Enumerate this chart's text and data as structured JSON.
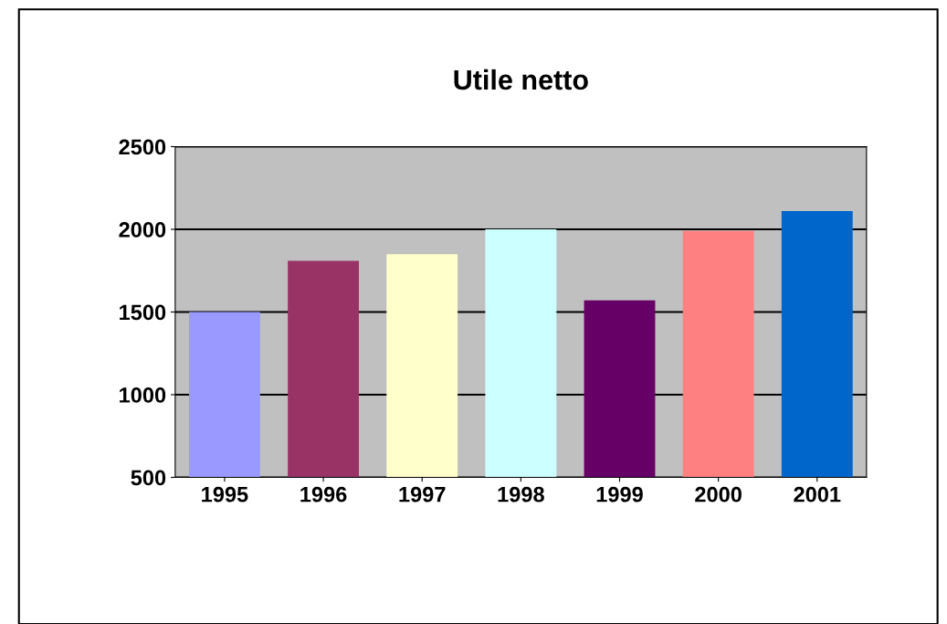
{
  "chart_data": {
    "type": "bar",
    "title": "Utile netto",
    "categories": [
      "1995",
      "1996",
      "1997",
      "1998",
      "1999",
      "2000",
      "2001"
    ],
    "values": [
      1500,
      1810,
      1850,
      2000,
      1570,
      1990,
      2110
    ],
    "colors": [
      "#9999ff",
      "#993366",
      "#ffffcc",
      "#ccffff",
      "#660066",
      "#ff8080",
      "#0066cc"
    ],
    "ylim": [
      500,
      2500
    ],
    "yticks": [
      500,
      1000,
      1500,
      2000,
      2500
    ],
    "grid": "y"
  }
}
